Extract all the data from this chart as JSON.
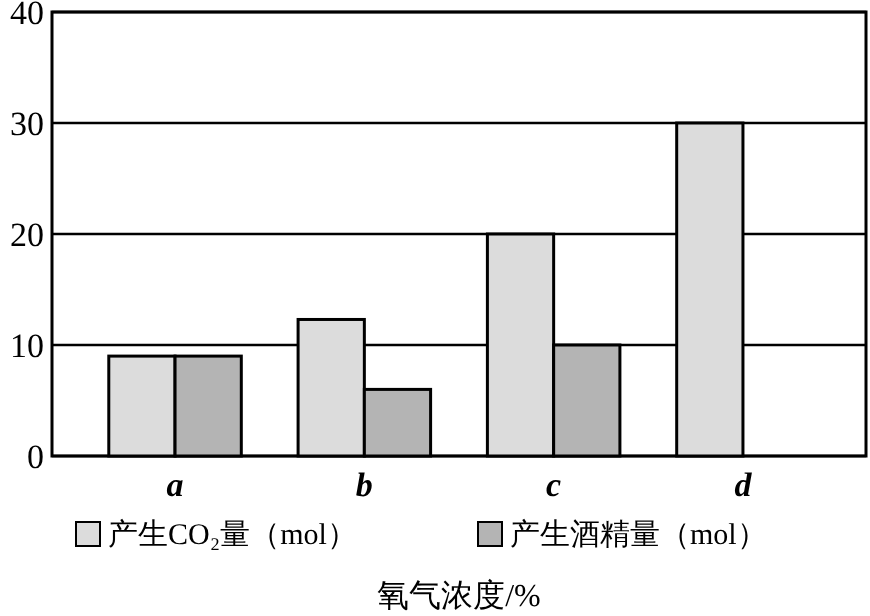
{
  "chart_data": {
    "type": "bar",
    "xlabel": "氧气浓度/%",
    "categories": [
      "a",
      "b",
      "c",
      "d"
    ],
    "series": [
      {
        "name": "产生CO₂量（mol）",
        "color": "#dcdcdc",
        "values": [
          9,
          12.3,
          20,
          30
        ]
      },
      {
        "name": "产生酒精量（mol）",
        "color": "#b4b4b4",
        "values": [
          9,
          6,
          10,
          0
        ]
      }
    ],
    "ylim": [
      0,
      40
    ],
    "yticks": [
      0,
      10,
      20,
      30,
      40
    ],
    "grid": "y",
    "legend": "bottom"
  }
}
